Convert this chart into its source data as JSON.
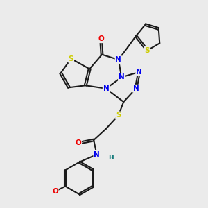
{
  "bg_color": "#ebebeb",
  "bond_color": "#1a1a1a",
  "atom_colors": {
    "S": "#cccc00",
    "N": "#0000ee",
    "O": "#ee0000",
    "C": "#1a1a1a",
    "H": "#007070"
  },
  "fig_width": 3.0,
  "fig_height": 3.0,
  "dpi": 100
}
